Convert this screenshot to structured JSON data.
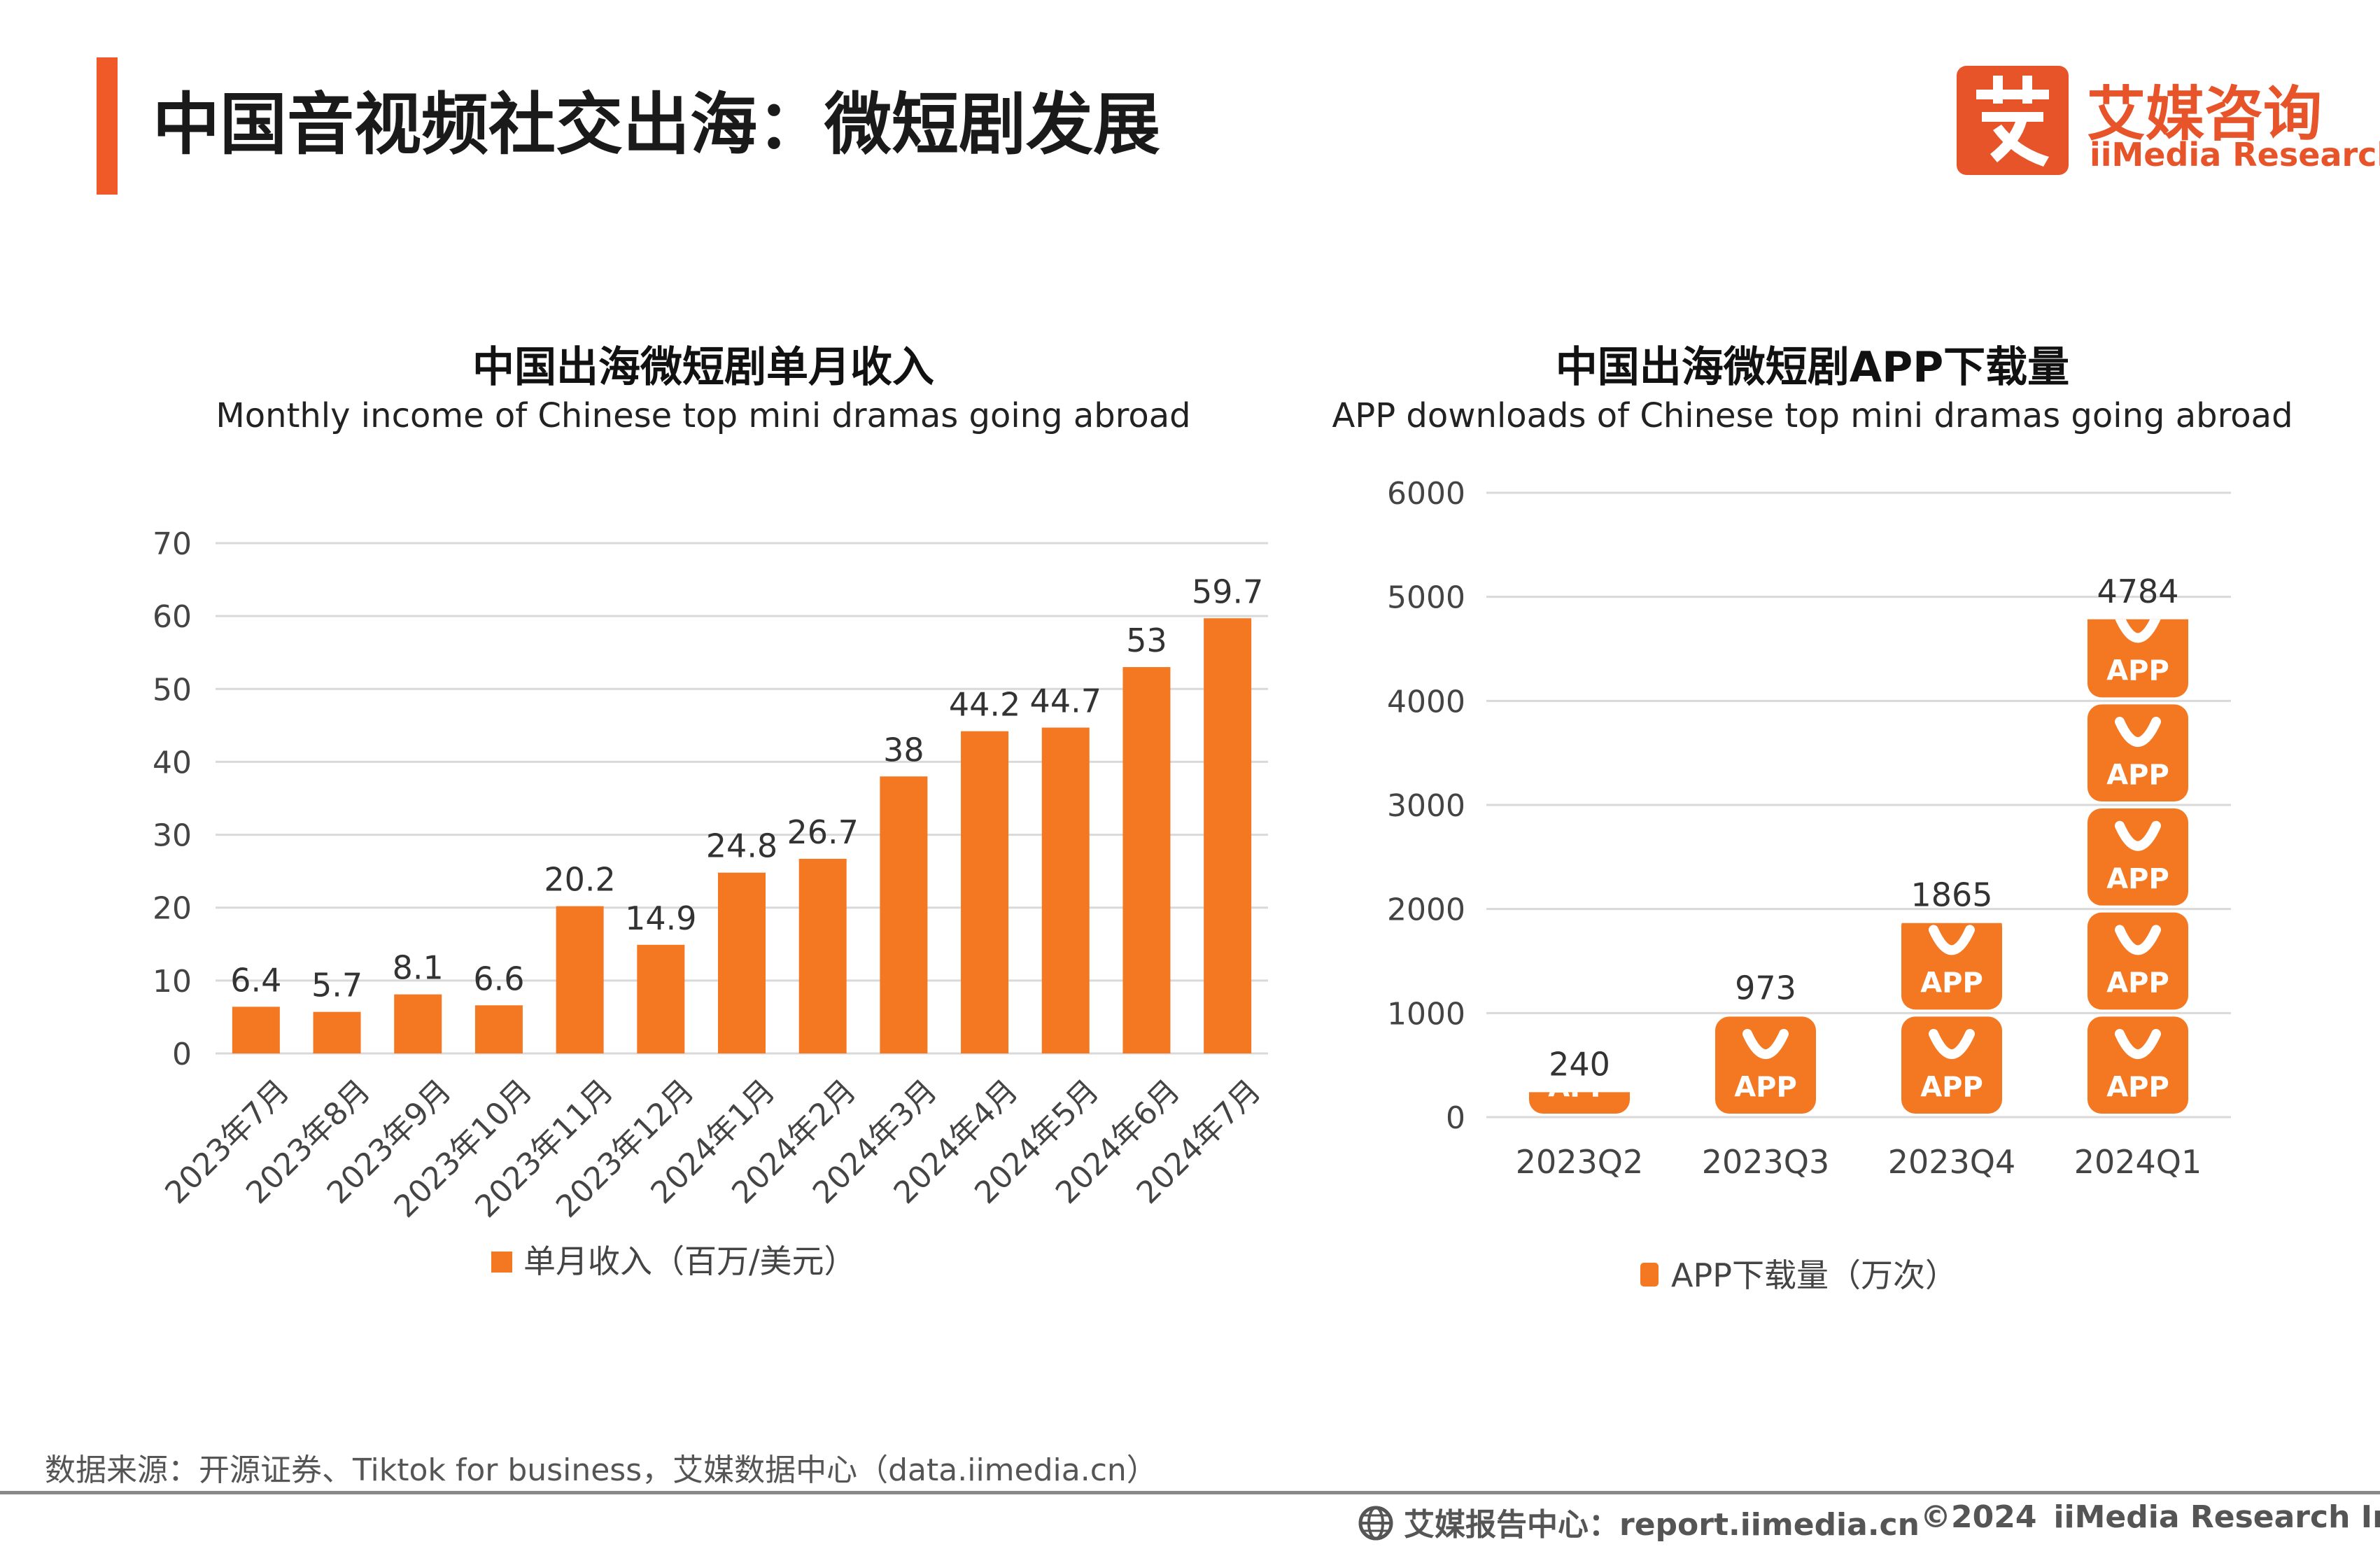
{
  "page": {
    "title": "中国音视频社交出海：微短剧发展",
    "logo_cn": "艾媒咨询",
    "logo_en": "iiMedia Research",
    "source": "数据来源：开源证券、Tiktok for business，艾媒数据中心（data.iimedia.cn）",
    "footer_site": "艾媒报告中心：report.iimedia.cn",
    "footer_copyright": "©2024",
    "footer_company": "iiMedia Research  Inc"
  },
  "colors": {
    "accent": "#F05A28",
    "bar": "#F47721",
    "grid": "#D9D9D9",
    "icon_text": "#ffffff"
  },
  "icons": {
    "logo": "iimedia-logo-icon",
    "globe": "globe-icon",
    "app": "app-bag-icon"
  },
  "chart_data": [
    {
      "type": "bar",
      "title": "中国出海微短剧单月收入",
      "subtitle": "Monthly income of Chinese top mini dramas going abroad",
      "categories": [
        "2023年7月",
        "2023年8月",
        "2023年9月",
        "2023年10月",
        "2023年11月",
        "2023年12月",
        "2024年1月",
        "2024年2月",
        "2024年3月",
        "2024年4月",
        "2024年5月",
        "2024年6月",
        "2024年7月"
      ],
      "series": [
        {
          "name": "单月收入（百万/美元）",
          "values": [
            6.4,
            5.7,
            8.1,
            6.6,
            20.2,
            14.9,
            24.8,
            26.7,
            38,
            44.2,
            44.7,
            53,
            59.7
          ]
        }
      ],
      "ylim": [
        0,
        70
      ],
      "yticks": [
        0,
        10,
        20,
        30,
        40,
        50,
        60,
        70
      ],
      "xlabel": "",
      "ylabel": "",
      "grid": true,
      "legend": "bottom"
    },
    {
      "type": "bar",
      "title": "中国出海微短剧APP下载量",
      "subtitle": "APP downloads of Chinese top mini dramas going abroad",
      "categories": [
        "2023Q2",
        "2023Q3",
        "2023Q4",
        "2024Q1"
      ],
      "series": [
        {
          "name": "APP下载量（万次）",
          "values": [
            240,
            973,
            1865,
            4784
          ]
        }
      ],
      "ylim": [
        0,
        6000
      ],
      "yticks": [
        0,
        1000,
        2000,
        3000,
        4000,
        5000,
        6000
      ],
      "unit_per_icon": 1000,
      "icon_label": "APP",
      "xlabel": "",
      "ylabel": "",
      "grid": true,
      "legend": "bottom"
    }
  ]
}
